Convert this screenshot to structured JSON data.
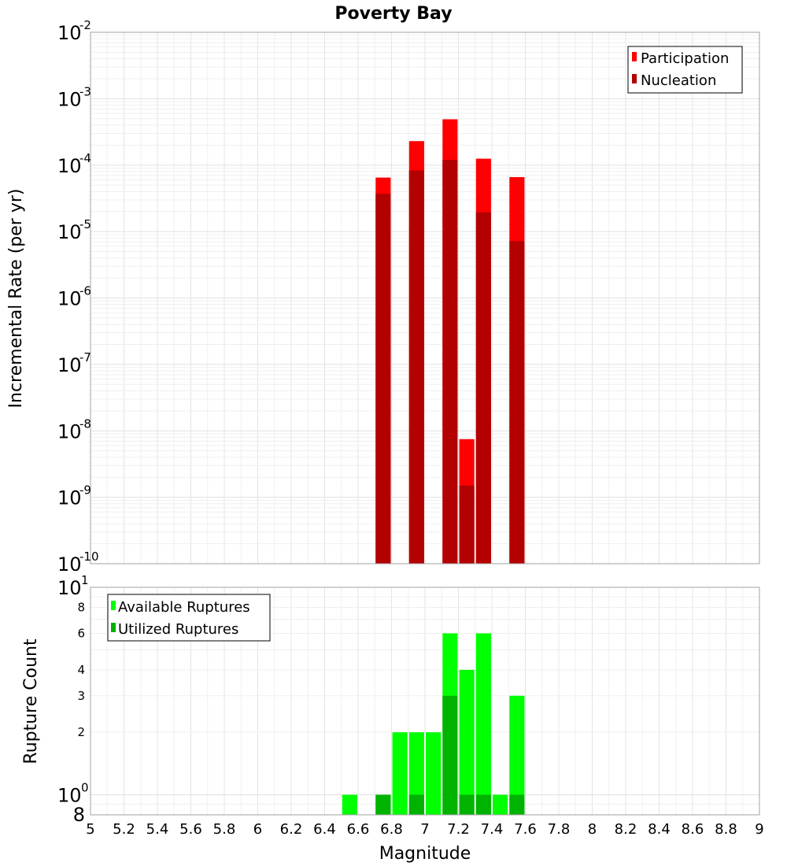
{
  "chart_data": [
    {
      "type": "bar",
      "title": "Poverty Bay",
      "xlabel": "",
      "ylabel": "Incremental Rate (per yr)",
      "yscale": "log",
      "ylim": [
        1e-10,
        0.01
      ],
      "xlim": [
        5,
        9
      ],
      "grid": true,
      "legend_position": "top-right",
      "bar_width": 0.09,
      "x": [
        6.75,
        6.95,
        7.15,
        7.25,
        7.35,
        7.55
      ],
      "series": [
        {
          "name": "Participation",
          "color": "#ff0000",
          "values": [
            6.5e-05,
            0.00023,
            0.00049,
            7.5e-09,
            0.000125,
            6.6e-05
          ]
        },
        {
          "name": "Nucleation",
          "color": "#b30000",
          "values": [
            3.7e-05,
            8.3e-05,
            0.00012,
            1.5e-09,
            1.95e-05,
            7.2e-06
          ]
        }
      ],
      "y_ticks": [
        {
          "base": "10",
          "exp": "-2",
          "value": 0.01
        },
        {
          "base": "10",
          "exp": "-3",
          "value": 0.001
        },
        {
          "base": "10",
          "exp": "-4",
          "value": 0.0001
        },
        {
          "base": "10",
          "exp": "-5",
          "value": 1e-05
        },
        {
          "base": "10",
          "exp": "-6",
          "value": 1e-06
        },
        {
          "base": "10",
          "exp": "-7",
          "value": 1e-07
        },
        {
          "base": "10",
          "exp": "-8",
          "value": 1e-08
        },
        {
          "base": "10",
          "exp": "-9",
          "value": 1e-09
        },
        {
          "base": "10",
          "exp": "-10",
          "value": 1e-10
        }
      ]
    },
    {
      "type": "bar",
      "xlabel": "Magnitude",
      "ylabel": "Rupture Count",
      "yscale": "log",
      "ylim": [
        0.8,
        10
      ],
      "xlim": [
        5,
        9
      ],
      "grid": true,
      "legend_position": "top-left",
      "bar_width": 0.09,
      "x": [
        6.55,
        6.75,
        6.85,
        6.95,
        7.05,
        7.15,
        7.25,
        7.35,
        7.45,
        7.55
      ],
      "series": [
        {
          "name": "Available Ruptures",
          "color": "#00ff00",
          "values": [
            1,
            1,
            2,
            2,
            2,
            6,
            4,
            6,
            1,
            3
          ]
        },
        {
          "name": "Utilized Ruptures",
          "color": "#00b300",
          "values": [
            0,
            1,
            0,
            1,
            0,
            3,
            1,
            1,
            0,
            1
          ]
        }
      ],
      "y_ticks_major": [
        {
          "base": "10",
          "exp": "1",
          "value": 10
        },
        {
          "base": "10",
          "exp": "0",
          "value": 1
        }
      ],
      "y_ticks_minor": [
        {
          "label": "8",
          "value": 8
        },
        {
          "label": "6",
          "value": 6
        },
        {
          "label": "4",
          "value": 4
        },
        {
          "label": "3",
          "value": 3
        },
        {
          "label": "2",
          "value": 2
        }
      ],
      "y_bottom_label": {
        "label": "8",
        "value": 0.8
      },
      "x_ticks": [
        "5",
        "5.2",
        "5.4",
        "5.6",
        "5.8",
        "6",
        "6.2",
        "6.4",
        "6.6",
        "6.8",
        "7",
        "7.2",
        "7.4",
        "7.6",
        "7.8",
        "8",
        "8.2",
        "8.4",
        "8.6",
        "8.8",
        "9"
      ]
    }
  ]
}
